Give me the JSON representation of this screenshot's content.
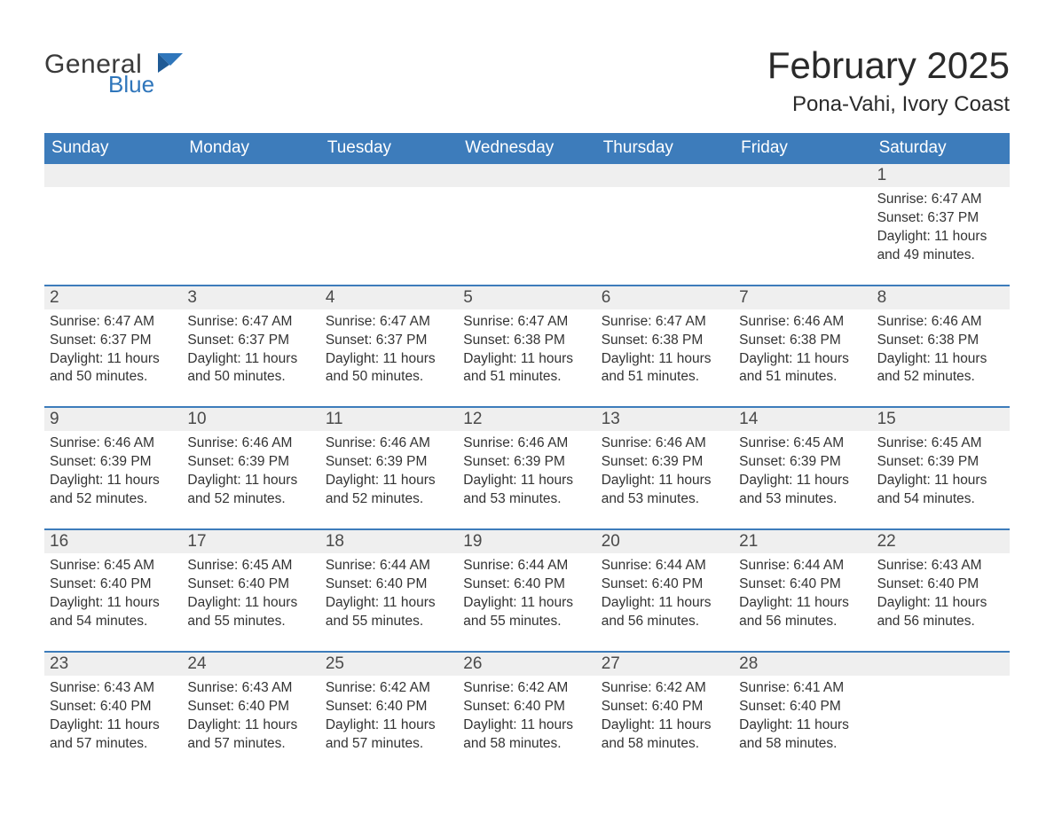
{
  "brand": {
    "word1": "General",
    "word2": "Blue"
  },
  "title": "February 2025",
  "location": "Pona-Vahi, Ivory Coast",
  "colors": {
    "brand_blue": "#2f76bb",
    "header_blue": "#3d7cbb",
    "light_gray": "#efefef",
    "rule_blue": "#3d7cbb",
    "text_dark": "#333333",
    "background": "#ffffff"
  },
  "typography": {
    "title_fontsize_pt": 32,
    "location_fontsize_pt": 18,
    "weekday_fontsize_pt": 14,
    "daynum_fontsize_pt": 14,
    "body_fontsize_pt": 12,
    "font_family": "Arial"
  },
  "layout": {
    "columns": 7,
    "weeks": 5,
    "first_day_column_index": 6
  },
  "weekdays": [
    "Sunday",
    "Monday",
    "Tuesday",
    "Wednesday",
    "Thursday",
    "Friday",
    "Saturday"
  ],
  "days": [
    {
      "n": 1,
      "sunrise": "6:47 AM",
      "sunset": "6:37 PM",
      "daylight": "11 hours and 49 minutes."
    },
    {
      "n": 2,
      "sunrise": "6:47 AM",
      "sunset": "6:37 PM",
      "daylight": "11 hours and 50 minutes."
    },
    {
      "n": 3,
      "sunrise": "6:47 AM",
      "sunset": "6:37 PM",
      "daylight": "11 hours and 50 minutes."
    },
    {
      "n": 4,
      "sunrise": "6:47 AM",
      "sunset": "6:37 PM",
      "daylight": "11 hours and 50 minutes."
    },
    {
      "n": 5,
      "sunrise": "6:47 AM",
      "sunset": "6:38 PM",
      "daylight": "11 hours and 51 minutes."
    },
    {
      "n": 6,
      "sunrise": "6:47 AM",
      "sunset": "6:38 PM",
      "daylight": "11 hours and 51 minutes."
    },
    {
      "n": 7,
      "sunrise": "6:46 AM",
      "sunset": "6:38 PM",
      "daylight": "11 hours and 51 minutes."
    },
    {
      "n": 8,
      "sunrise": "6:46 AM",
      "sunset": "6:38 PM",
      "daylight": "11 hours and 52 minutes."
    },
    {
      "n": 9,
      "sunrise": "6:46 AM",
      "sunset": "6:39 PM",
      "daylight": "11 hours and 52 minutes."
    },
    {
      "n": 10,
      "sunrise": "6:46 AM",
      "sunset": "6:39 PM",
      "daylight": "11 hours and 52 minutes."
    },
    {
      "n": 11,
      "sunrise": "6:46 AM",
      "sunset": "6:39 PM",
      "daylight": "11 hours and 52 minutes."
    },
    {
      "n": 12,
      "sunrise": "6:46 AM",
      "sunset": "6:39 PM",
      "daylight": "11 hours and 53 minutes."
    },
    {
      "n": 13,
      "sunrise": "6:46 AM",
      "sunset": "6:39 PM",
      "daylight": "11 hours and 53 minutes."
    },
    {
      "n": 14,
      "sunrise": "6:45 AM",
      "sunset": "6:39 PM",
      "daylight": "11 hours and 53 minutes."
    },
    {
      "n": 15,
      "sunrise": "6:45 AM",
      "sunset": "6:39 PM",
      "daylight": "11 hours and 54 minutes."
    },
    {
      "n": 16,
      "sunrise": "6:45 AM",
      "sunset": "6:40 PM",
      "daylight": "11 hours and 54 minutes."
    },
    {
      "n": 17,
      "sunrise": "6:45 AM",
      "sunset": "6:40 PM",
      "daylight": "11 hours and 55 minutes."
    },
    {
      "n": 18,
      "sunrise": "6:44 AM",
      "sunset": "6:40 PM",
      "daylight": "11 hours and 55 minutes."
    },
    {
      "n": 19,
      "sunrise": "6:44 AM",
      "sunset": "6:40 PM",
      "daylight": "11 hours and 55 minutes."
    },
    {
      "n": 20,
      "sunrise": "6:44 AM",
      "sunset": "6:40 PM",
      "daylight": "11 hours and 56 minutes."
    },
    {
      "n": 21,
      "sunrise": "6:44 AM",
      "sunset": "6:40 PM",
      "daylight": "11 hours and 56 minutes."
    },
    {
      "n": 22,
      "sunrise": "6:43 AM",
      "sunset": "6:40 PM",
      "daylight": "11 hours and 56 minutes."
    },
    {
      "n": 23,
      "sunrise": "6:43 AM",
      "sunset": "6:40 PM",
      "daylight": "11 hours and 57 minutes."
    },
    {
      "n": 24,
      "sunrise": "6:43 AM",
      "sunset": "6:40 PM",
      "daylight": "11 hours and 57 minutes."
    },
    {
      "n": 25,
      "sunrise": "6:42 AM",
      "sunset": "6:40 PM",
      "daylight": "11 hours and 57 minutes."
    },
    {
      "n": 26,
      "sunrise": "6:42 AM",
      "sunset": "6:40 PM",
      "daylight": "11 hours and 58 minutes."
    },
    {
      "n": 27,
      "sunrise": "6:42 AM",
      "sunset": "6:40 PM",
      "daylight": "11 hours and 58 minutes."
    },
    {
      "n": 28,
      "sunrise": "6:41 AM",
      "sunset": "6:40 PM",
      "daylight": "11 hours and 58 minutes."
    }
  ],
  "labels": {
    "sunrise_prefix": "Sunrise: ",
    "sunset_prefix": "Sunset: ",
    "daylight_prefix": "Daylight: "
  }
}
